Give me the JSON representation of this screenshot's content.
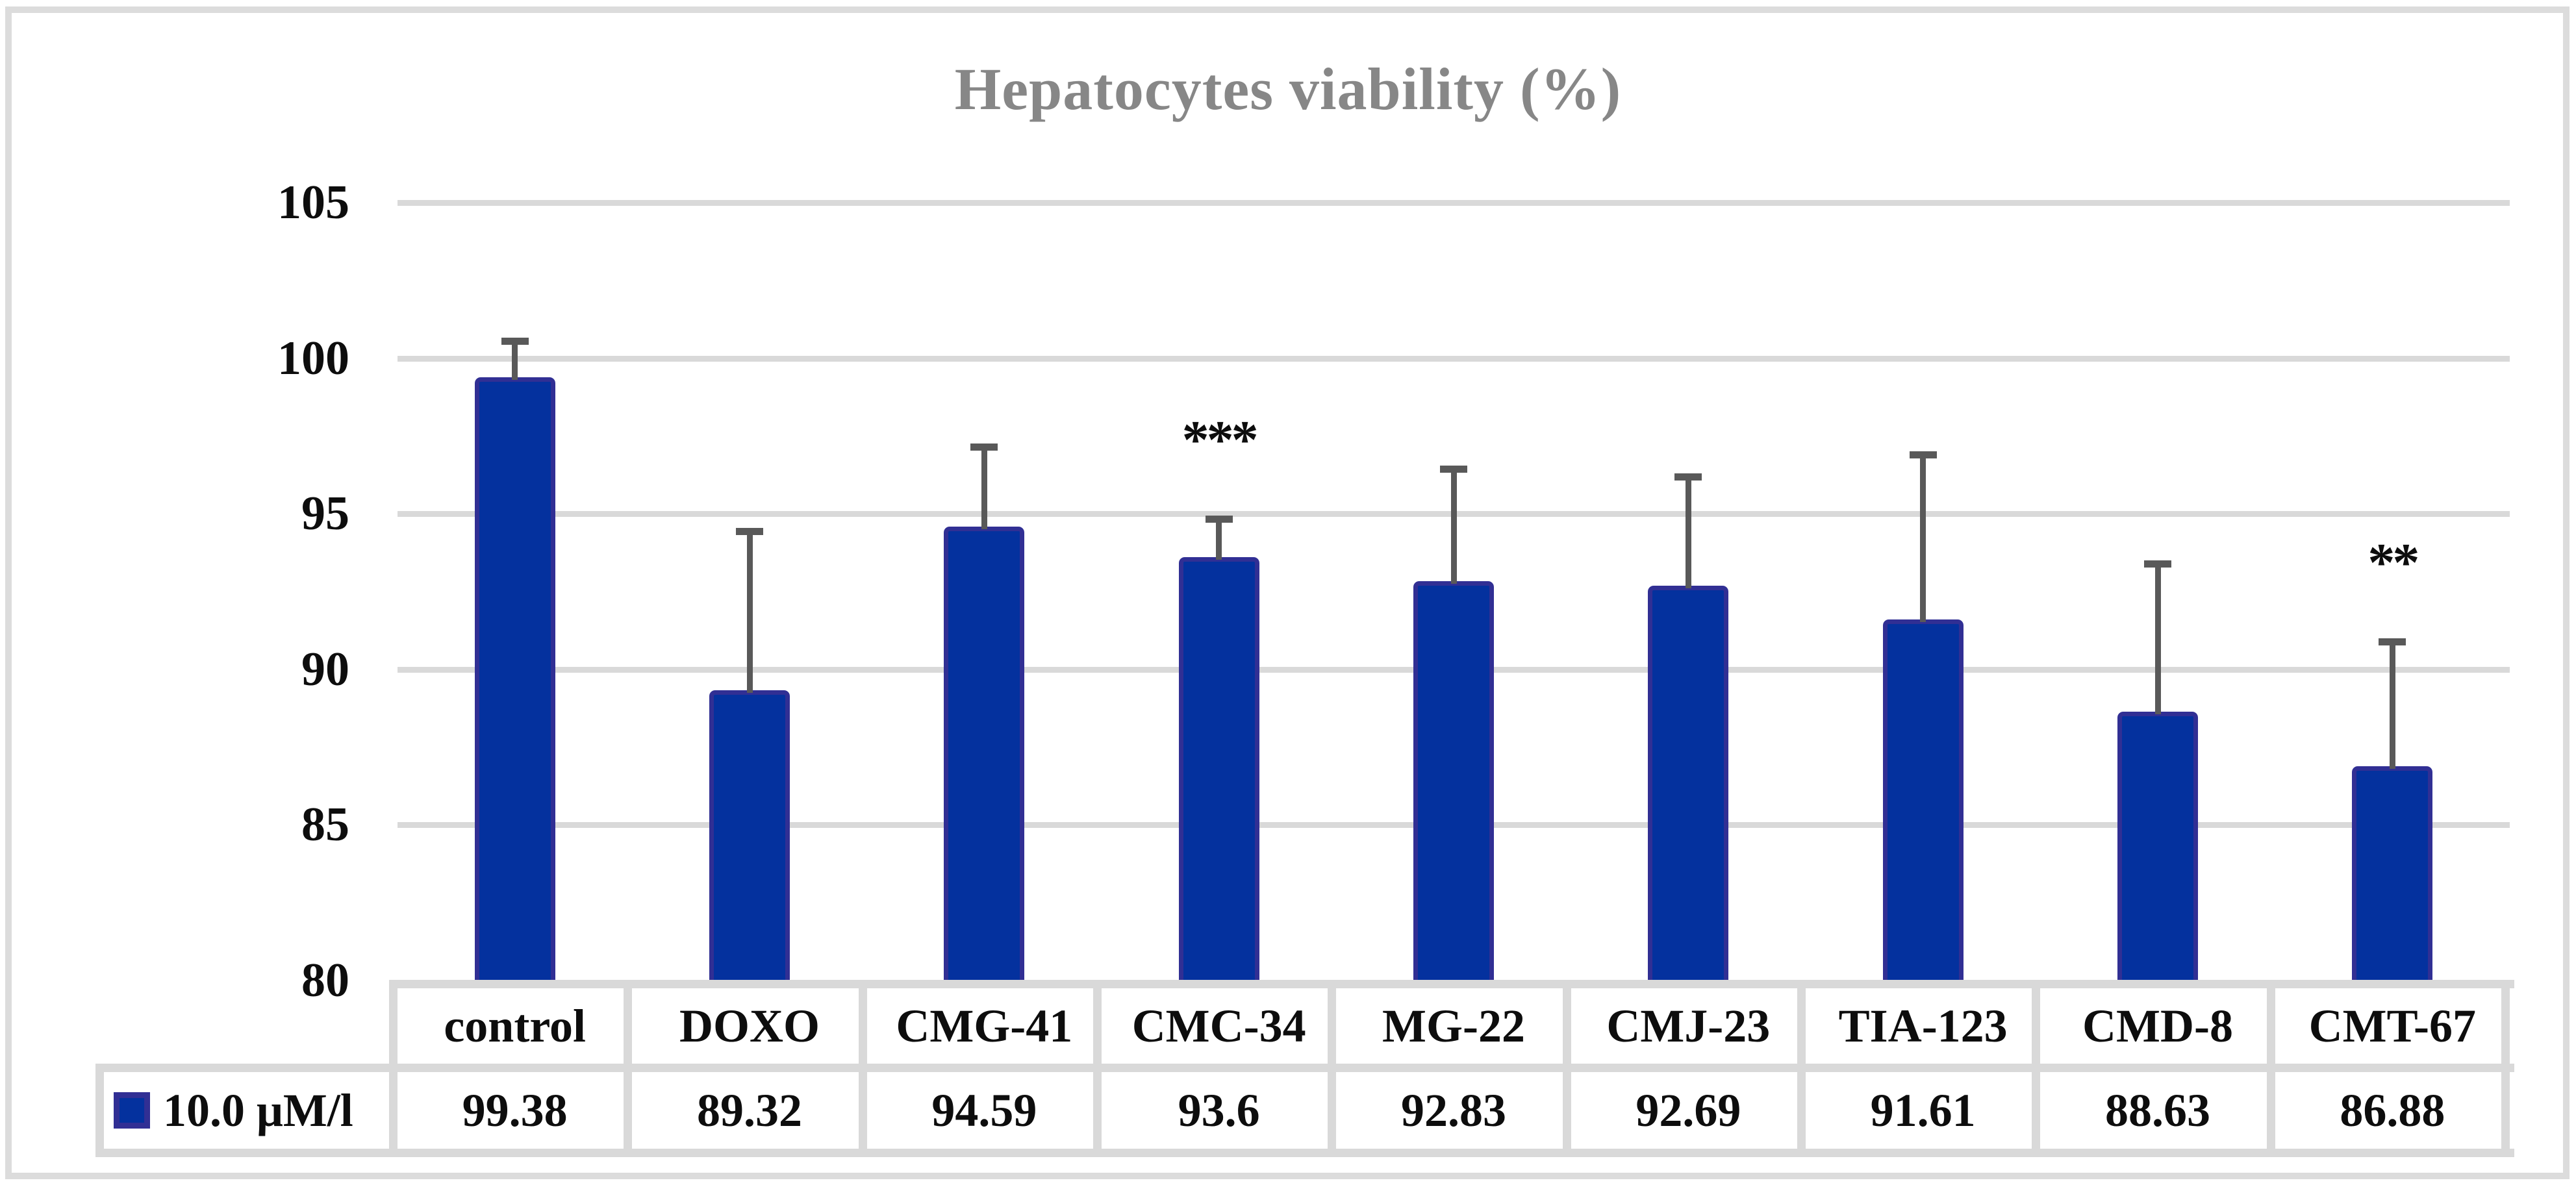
{
  "figure": {
    "background": "#ffffff",
    "border_color": "#dcdcdc"
  },
  "chart_data": {
    "type": "bar",
    "title": "Hepatocytes viability (%)",
    "title_color": "#878787",
    "categories": [
      "control",
      "DOXO",
      "CMG-41",
      "CMC-34",
      "MG-22",
      "CMJ-23",
      "TIA-123",
      "CMD-8",
      "CMT-67"
    ],
    "series": [
      {
        "name": "10.0 μM/l",
        "values": [
          99.38,
          89.32,
          94.59,
          93.6,
          92.83,
          92.69,
          91.61,
          88.63,
          86.88
        ],
        "value_labels": [
          "99.38",
          "89.32",
          "94.59",
          "93.6",
          "92.83",
          "92.69",
          "91.61",
          "88.63",
          "86.88"
        ],
        "error_upper": [
          1.27,
          5.23,
          2.66,
          1.35,
          3.72,
          3.61,
          5.39,
          4.87,
          4.12
        ],
        "bar_fill": "#04319e",
        "bar_border": "#312f94"
      }
    ],
    "annotations": [
      {
        "category": "CMC-34",
        "text": "***"
      },
      {
        "category": "CMT-67",
        "text": "**"
      }
    ],
    "y_axis": {
      "min": 80,
      "max": 105,
      "step": 5,
      "tick_labels": [
        "105",
        "100",
        "95",
        "90",
        "85",
        "80"
      ]
    },
    "grid": "horizontal",
    "gridline_color": "#d9d9d9",
    "error_bar_color": "#595959",
    "legend": {
      "label": "10.0 μM/l",
      "position": "bottom-left-table"
    },
    "data_table": {
      "show": true
    }
  }
}
